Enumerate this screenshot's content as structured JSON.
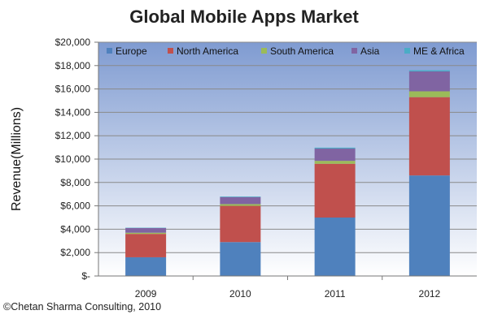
{
  "chart_data": {
    "type": "bar",
    "stacked": true,
    "title": "Global Mobile Apps Market",
    "xlabel": "",
    "ylabel": "Revenue(Millions)",
    "ylim": [
      0,
      20000
    ],
    "yticks": [
      "$-",
      "$2,000",
      "$4,000",
      "$6,000",
      "$8,000",
      "$10,000",
      "$12,000",
      "$14,000",
      "$16,000",
      "$18,000",
      "$20,000"
    ],
    "ytick_values": [
      0,
      2000,
      4000,
      6000,
      8000,
      10000,
      12000,
      14000,
      16000,
      18000,
      20000
    ],
    "categories": [
      "2009",
      "2010",
      "2011",
      "2012"
    ],
    "grid": true,
    "legend_position": "top",
    "series": [
      {
        "name": "Europe",
        "color": "#4f81bd",
        "values": [
          1600,
          2900,
          5000,
          8600
        ]
      },
      {
        "name": "North America",
        "color": "#c0504d",
        "values": [
          2000,
          3100,
          4600,
          6700
        ]
      },
      {
        "name": "South America",
        "color": "#9bbb59",
        "values": [
          100,
          150,
          250,
          500
        ]
      },
      {
        "name": "Asia",
        "color": "#8064a2",
        "values": [
          400,
          600,
          1050,
          1700
        ]
      },
      {
        "name": "ME & Africa",
        "color": "#4bacc6",
        "values": [
          30,
          50,
          80,
          100
        ]
      }
    ],
    "source": "©Chetan Sharma Consulting, 2010"
  }
}
